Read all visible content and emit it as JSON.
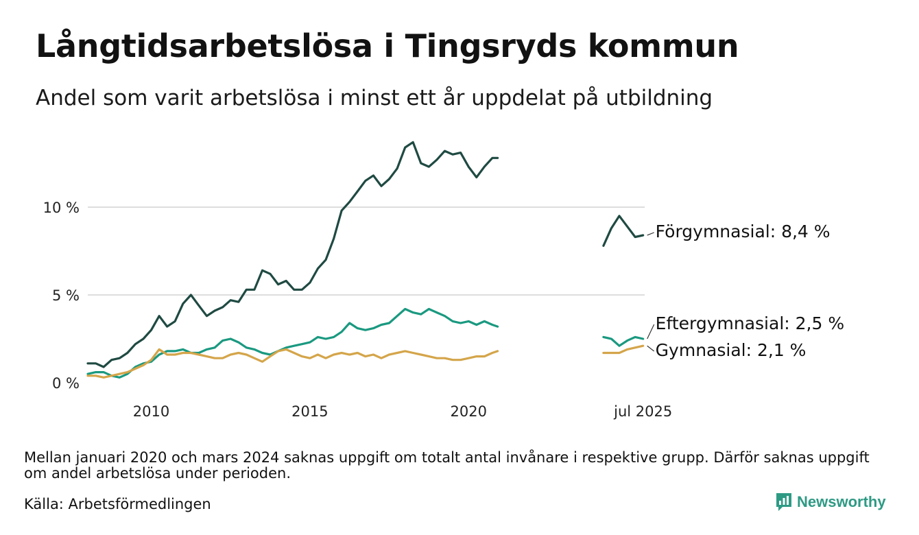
{
  "title": "Långtidsarbetslösa i Tingsryds kommun",
  "subtitle": "Andel som varit arbetslösa i minst ett år uppdelat på utbildning",
  "note": "Mellan januari 2020 och mars 2024 saknas uppgift om totalt antal invånare i respektive grupp. Därför saknas uppgift om andel arbetslösa under perioden.",
  "source": "Källa: Arbetsförmedlingen",
  "brand": {
    "name": "Newsworthy",
    "icon": "newsworthy-logo-icon"
  },
  "colors": {
    "forgymnasial": "#1f4a42",
    "eftergymnasial": "#1a9980",
    "gymnasial": "#d4a54a",
    "grid": "#dddddd"
  },
  "chart_data": {
    "type": "line",
    "title": "Långtidsarbetslösa i Tingsryds kommun",
    "subtitle": "Andel som varit arbetslösa i minst ett år uppdelat på utbildning",
    "xlabel": "",
    "ylabel": "",
    "y_ticks": [
      0,
      5,
      10
    ],
    "y_tick_labels": [
      "0 %",
      "5 %",
      "10 %"
    ],
    "ylim": [
      0,
      14
    ],
    "x_ticks": [
      "2010",
      "2015",
      "2020",
      "jul 2025"
    ],
    "grid": true,
    "legend": "end-of-line labels, right",
    "series": [
      {
        "key": "forgymnasial",
        "end_label": "Förgymnasial: 8,4 %",
        "segments": [
          [
            [
              "2008-01",
              1.1
            ],
            [
              "2008-04",
              1.1
            ],
            [
              "2008-07",
              0.9
            ],
            [
              "2008-10",
              1.3
            ],
            [
              "2009-01",
              1.4
            ],
            [
              "2009-04",
              1.7
            ],
            [
              "2009-07",
              2.2
            ],
            [
              "2009-10",
              2.5
            ],
            [
              "2010-01",
              3.0
            ],
            [
              "2010-04",
              3.8
            ],
            [
              "2010-07",
              3.2
            ],
            [
              "2010-10",
              3.5
            ],
            [
              "2011-01",
              4.5
            ],
            [
              "2011-04",
              5.0
            ],
            [
              "2011-07",
              4.4
            ],
            [
              "2011-10",
              3.8
            ],
            [
              "2012-01",
              4.1
            ],
            [
              "2012-04",
              4.3
            ],
            [
              "2012-07",
              4.7
            ],
            [
              "2012-10",
              4.6
            ],
            [
              "2013-01",
              5.3
            ],
            [
              "2013-04",
              5.3
            ],
            [
              "2013-07",
              6.4
            ],
            [
              "2013-10",
              6.2
            ],
            [
              "2014-01",
              5.6
            ],
            [
              "2014-04",
              5.8
            ],
            [
              "2014-07",
              5.3
            ],
            [
              "2014-10",
              5.3
            ],
            [
              "2015-01",
              5.7
            ],
            [
              "2015-04",
              6.5
            ],
            [
              "2015-07",
              7.0
            ],
            [
              "2015-10",
              8.2
            ],
            [
              "2016-01",
              9.8
            ],
            [
              "2016-04",
              10.3
            ],
            [
              "2016-07",
              10.9
            ],
            [
              "2016-10",
              11.5
            ],
            [
              "2017-01",
              11.8
            ],
            [
              "2017-04",
              11.2
            ],
            [
              "2017-07",
              11.6
            ],
            [
              "2017-10",
              12.2
            ],
            [
              "2018-01",
              13.4
            ],
            [
              "2018-04",
              13.7
            ],
            [
              "2018-07",
              12.5
            ],
            [
              "2018-10",
              12.3
            ],
            [
              "2019-01",
              12.7
            ],
            [
              "2019-04",
              13.2
            ],
            [
              "2019-07",
              13.0
            ],
            [
              "2019-10",
              13.1
            ],
            [
              "2020-01",
              12.3
            ],
            [
              "2020-04",
              11.7
            ],
            [
              "2020-07",
              12.3
            ],
            [
              "2020-10",
              12.8
            ],
            [
              "2020-12",
              12.8
            ]
          ],
          [
            [
              "2024-04",
              7.8
            ],
            [
              "2024-07",
              8.8
            ],
            [
              "2024-10",
              9.5
            ],
            [
              "2025-01",
              8.9
            ],
            [
              "2025-04",
              8.3
            ],
            [
              "2025-07",
              8.4
            ]
          ]
        ]
      },
      {
        "key": "eftergymnasial",
        "end_label": "Eftergymnasial: 2,5 %",
        "segments": [
          [
            [
              "2008-01",
              0.5
            ],
            [
              "2008-04",
              0.6
            ],
            [
              "2008-07",
              0.6
            ],
            [
              "2008-10",
              0.4
            ],
            [
              "2009-01",
              0.3
            ],
            [
              "2009-04",
              0.5
            ],
            [
              "2009-07",
              0.9
            ],
            [
              "2009-10",
              1.1
            ],
            [
              "2010-01",
              1.2
            ],
            [
              "2010-04",
              1.6
            ],
            [
              "2010-07",
              1.8
            ],
            [
              "2010-10",
              1.8
            ],
            [
              "2011-01",
              1.9
            ],
            [
              "2011-04",
              1.7
            ],
            [
              "2011-07",
              1.7
            ],
            [
              "2011-10",
              1.9
            ],
            [
              "2012-01",
              2.0
            ],
            [
              "2012-04",
              2.4
            ],
            [
              "2012-07",
              2.5
            ],
            [
              "2012-10",
              2.3
            ],
            [
              "2013-01",
              2.0
            ],
            [
              "2013-04",
              1.9
            ],
            [
              "2013-07",
              1.7
            ],
            [
              "2013-10",
              1.6
            ],
            [
              "2014-01",
              1.8
            ],
            [
              "2014-04",
              2.0
            ],
            [
              "2014-07",
              2.1
            ],
            [
              "2014-10",
              2.2
            ],
            [
              "2015-01",
              2.3
            ],
            [
              "2015-04",
              2.6
            ],
            [
              "2015-07",
              2.5
            ],
            [
              "2015-10",
              2.6
            ],
            [
              "2016-01",
              2.9
            ],
            [
              "2016-04",
              3.4
            ],
            [
              "2016-07",
              3.1
            ],
            [
              "2016-10",
              3.0
            ],
            [
              "2017-01",
              3.1
            ],
            [
              "2017-04",
              3.3
            ],
            [
              "2017-07",
              3.4
            ],
            [
              "2017-10",
              3.8
            ],
            [
              "2018-01",
              4.2
            ],
            [
              "2018-04",
              4.0
            ],
            [
              "2018-07",
              3.9
            ],
            [
              "2018-10",
              4.2
            ],
            [
              "2019-01",
              4.0
            ],
            [
              "2019-04",
              3.8
            ],
            [
              "2019-07",
              3.5
            ],
            [
              "2019-10",
              3.4
            ],
            [
              "2020-01",
              3.5
            ],
            [
              "2020-04",
              3.3
            ],
            [
              "2020-07",
              3.5
            ],
            [
              "2020-10",
              3.3
            ],
            [
              "2020-12",
              3.2
            ]
          ],
          [
            [
              "2024-04",
              2.6
            ],
            [
              "2024-07",
              2.5
            ],
            [
              "2024-10",
              2.1
            ],
            [
              "2025-01",
              2.4
            ],
            [
              "2025-04",
              2.6
            ],
            [
              "2025-07",
              2.5
            ]
          ]
        ]
      },
      {
        "key": "gymnasial",
        "end_label": "Gymnasial: 2,1 %",
        "segments": [
          [
            [
              "2008-01",
              0.4
            ],
            [
              "2008-04",
              0.4
            ],
            [
              "2008-07",
              0.3
            ],
            [
              "2008-10",
              0.4
            ],
            [
              "2009-01",
              0.5
            ],
            [
              "2009-04",
              0.6
            ],
            [
              "2009-07",
              0.8
            ],
            [
              "2009-10",
              1.0
            ],
            [
              "2010-01",
              1.3
            ],
            [
              "2010-04",
              1.9
            ],
            [
              "2010-07",
              1.6
            ],
            [
              "2010-10",
              1.6
            ],
            [
              "2011-01",
              1.7
            ],
            [
              "2011-04",
              1.7
            ],
            [
              "2011-07",
              1.6
            ],
            [
              "2011-10",
              1.5
            ],
            [
              "2012-01",
              1.4
            ],
            [
              "2012-04",
              1.4
            ],
            [
              "2012-07",
              1.6
            ],
            [
              "2012-10",
              1.7
            ],
            [
              "2013-01",
              1.6
            ],
            [
              "2013-04",
              1.4
            ],
            [
              "2013-07",
              1.2
            ],
            [
              "2013-10",
              1.5
            ],
            [
              "2014-01",
              1.8
            ],
            [
              "2014-04",
              1.9
            ],
            [
              "2014-07",
              1.7
            ],
            [
              "2014-10",
              1.5
            ],
            [
              "2015-01",
              1.4
            ],
            [
              "2015-04",
              1.6
            ],
            [
              "2015-07",
              1.4
            ],
            [
              "2015-10",
              1.6
            ],
            [
              "2016-01",
              1.7
            ],
            [
              "2016-04",
              1.6
            ],
            [
              "2016-07",
              1.7
            ],
            [
              "2016-10",
              1.5
            ],
            [
              "2017-01",
              1.6
            ],
            [
              "2017-04",
              1.4
            ],
            [
              "2017-07",
              1.6
            ],
            [
              "2017-10",
              1.7
            ],
            [
              "2018-01",
              1.8
            ],
            [
              "2018-04",
              1.7
            ],
            [
              "2018-07",
              1.6
            ],
            [
              "2018-10",
              1.5
            ],
            [
              "2019-01",
              1.4
            ],
            [
              "2019-04",
              1.4
            ],
            [
              "2019-07",
              1.3
            ],
            [
              "2019-10",
              1.3
            ],
            [
              "2020-01",
              1.4
            ],
            [
              "2020-04",
              1.5
            ],
            [
              "2020-07",
              1.5
            ],
            [
              "2020-10",
              1.7
            ],
            [
              "2020-12",
              1.8
            ]
          ],
          [
            [
              "2024-04",
              1.7
            ],
            [
              "2024-07",
              1.7
            ],
            [
              "2024-10",
              1.7
            ],
            [
              "2025-01",
              1.9
            ],
            [
              "2025-04",
              2.0
            ],
            [
              "2025-07",
              2.1
            ]
          ]
        ]
      }
    ]
  }
}
